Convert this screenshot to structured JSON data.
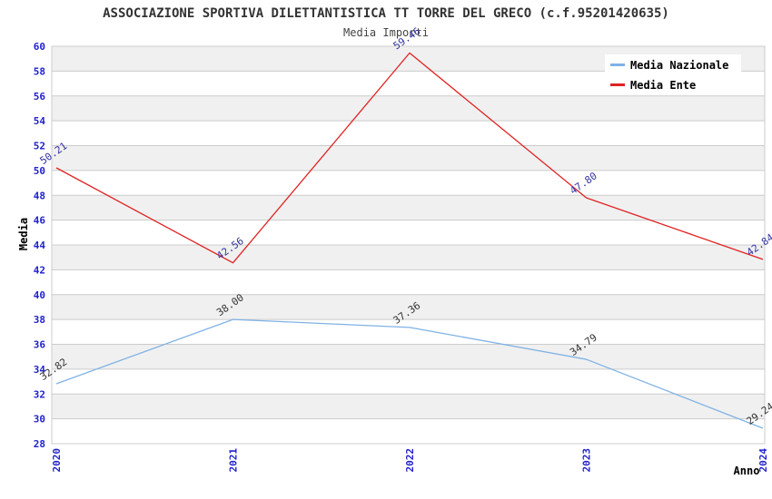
{
  "header": {
    "title": "ASSOCIAZIONE SPORTIVA DILETTANTISTICA TT TORRE DEL GRECO (c.f.95201420635)",
    "subtitle": "Media Importi"
  },
  "chart_data": {
    "type": "line",
    "x": [
      "2020",
      "2021",
      "2022",
      "2023",
      "2024"
    ],
    "series": [
      {
        "name": "Media Nazionale",
        "color": "#7FB2E5",
        "label_color": "#333333",
        "values": [
          32.82,
          38.0,
          37.36,
          34.79,
          29.24
        ]
      },
      {
        "name": "Media Ente",
        "color": "#E02222",
        "label_color": "#3333A0",
        "values": [
          50.21,
          42.56,
          59.46,
          47.8,
          42.84
        ]
      }
    ],
    "title": "ASSOCIAZIONE SPORTIVA DILETTANTISTICA TT TORRE DEL GRECO (c.f.95201420635)",
    "subtitle": "Media Importi",
    "xlabel": "Anno",
    "ylabel": "Media",
    "ylim": [
      28,
      60
    ],
    "ytick_step": 2,
    "yticks": [
      28,
      30,
      32,
      34,
      36,
      38,
      40,
      42,
      44,
      46,
      48,
      50,
      52,
      54,
      56,
      58,
      60
    ],
    "data_label_decimals": 2,
    "legend_position": "top-right-inside",
    "grid": "horizontal-lines-with-alternating-bands",
    "style": {
      "tick_color": "#2222CC",
      "text_color": "#333333",
      "subtitle_color": "#444444",
      "axis_title_color": "#000000",
      "legend_text_color": "#000000",
      "legend_bg": "#FFFFFF",
      "band_color": "#F0F0F0",
      "grid_color": "#CCCCCC",
      "plot_border_color": "#CCCCCC",
      "background": "#FFFFFF"
    }
  }
}
